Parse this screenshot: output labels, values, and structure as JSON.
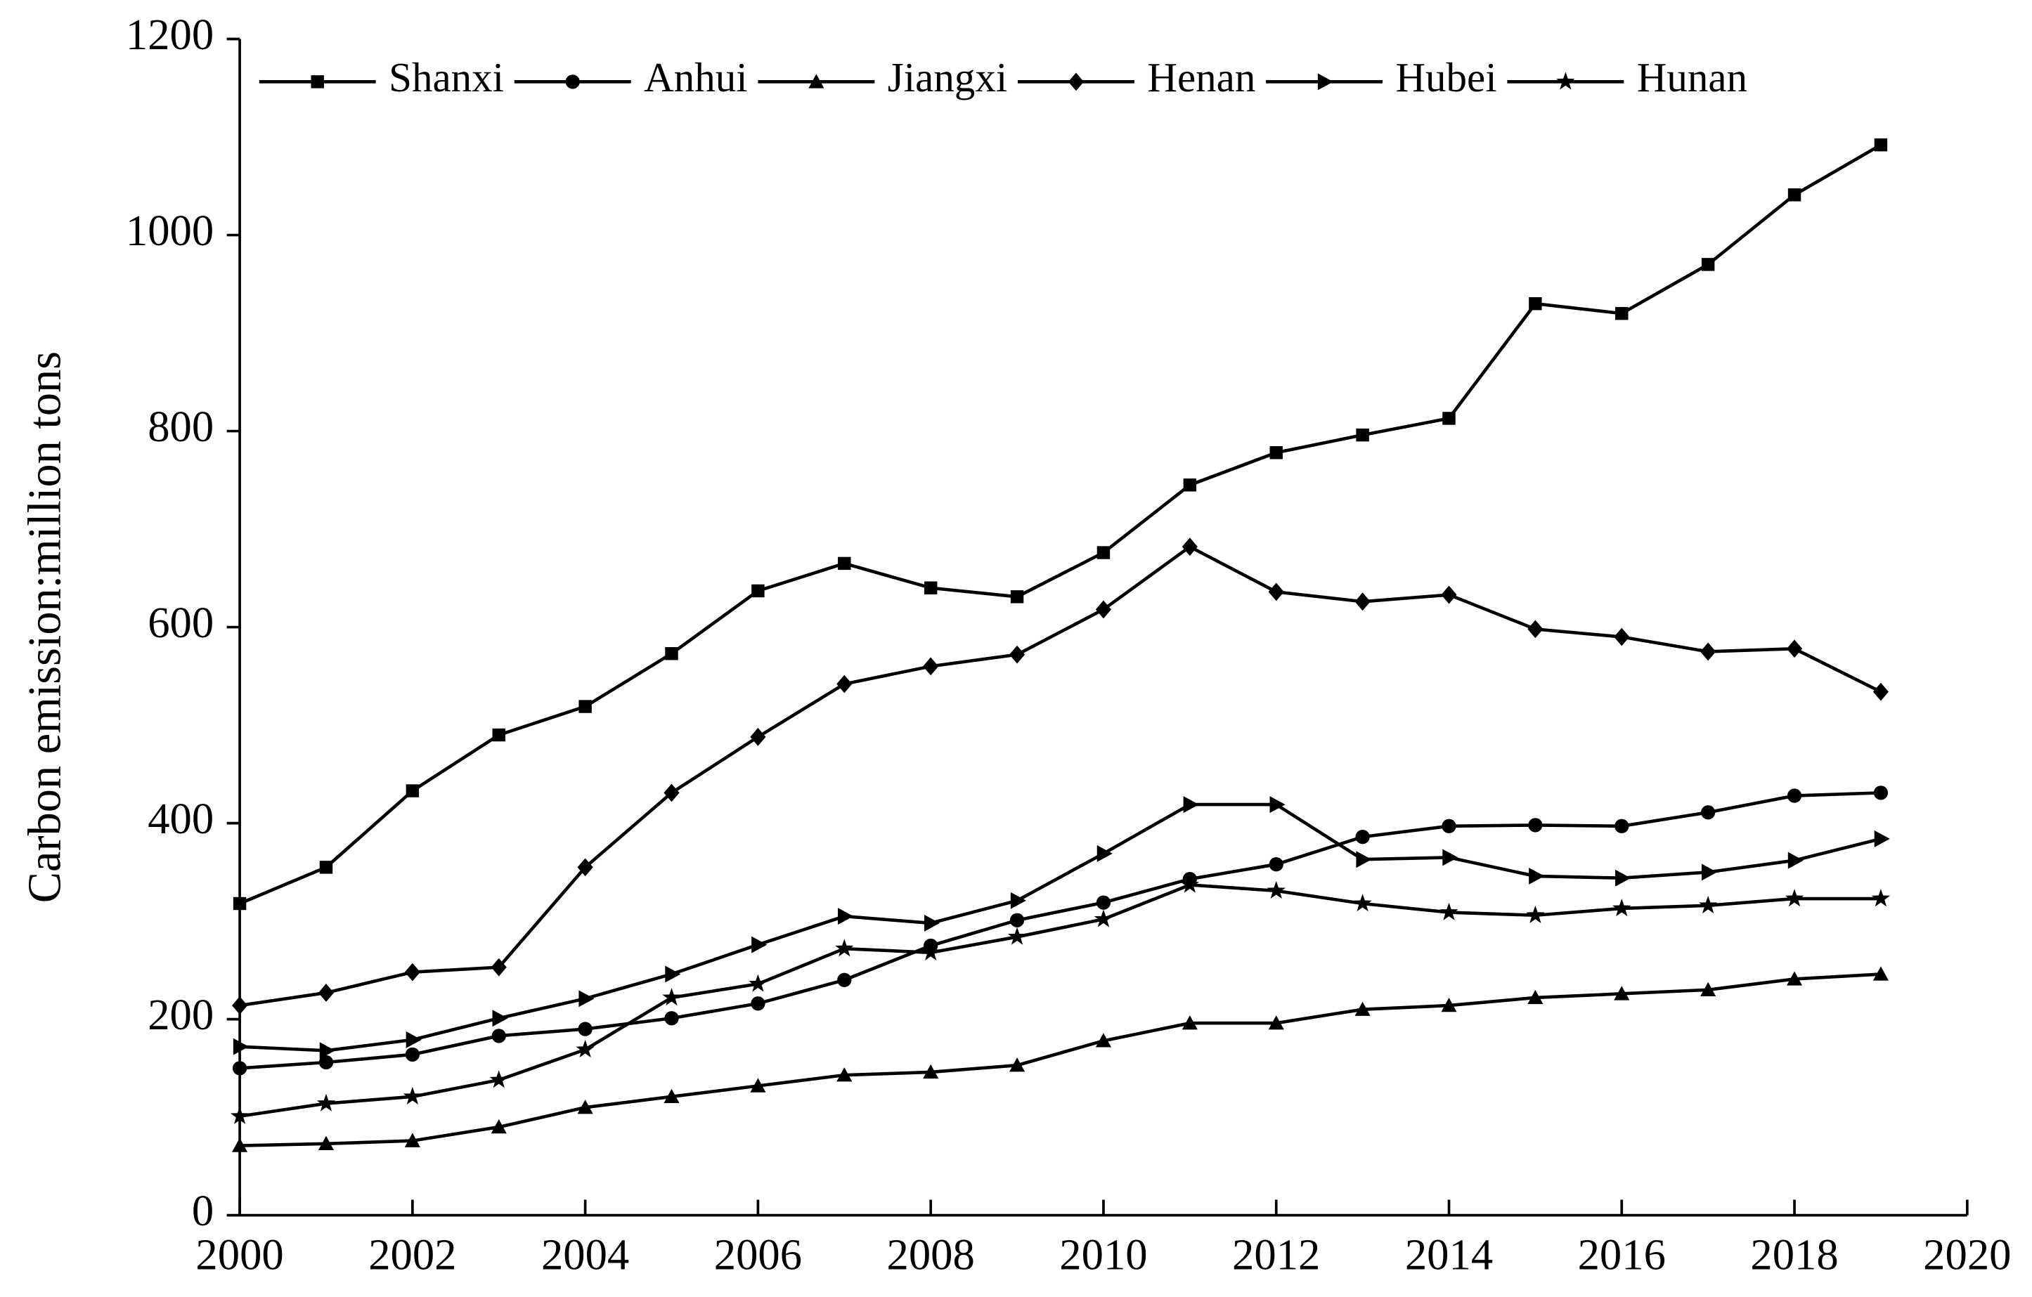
{
  "chart_data": {
    "type": "line",
    "y_label": "Carbon emission:million tons",
    "x": [
      2000,
      2001,
      2002,
      2003,
      2004,
      2005,
      2006,
      2007,
      2008,
      2009,
      2010,
      2011,
      2012,
      2013,
      2014,
      2015,
      2016,
      2017,
      2018,
      2019
    ],
    "xlim": [
      2000,
      2020
    ],
    "xticks": [
      2000,
      2002,
      2004,
      2006,
      2008,
      2010,
      2012,
      2014,
      2016,
      2018,
      2020
    ],
    "ylim": [
      0,
      1200
    ],
    "yticks": [
      0,
      200,
      400,
      600,
      800,
      1000,
      1200
    ],
    "grid": false,
    "legend": "top",
    "series": [
      {
        "name": "Shanxi",
        "color": "#000000",
        "marker": "square",
        "values": [
          318,
          355,
          433,
          490,
          519,
          573,
          637,
          665,
          640,
          631,
          676,
          745,
          778,
          796,
          813,
          930,
          920,
          970,
          1041,
          1092
        ]
      },
      {
        "name": "Anhui",
        "color": "#000000",
        "marker": "circle",
        "values": [
          150,
          156,
          164,
          183,
          190,
          201,
          216,
          240,
          275,
          301,
          319,
          343,
          358,
          386,
          397,
          398,
          397,
          411,
          428,
          431
        ]
      },
      {
        "name": "Jiangxi",
        "color": "#000000",
        "marker": "triangle",
        "values": [
          71,
          73,
          76,
          90,
          110,
          121,
          132,
          143,
          146,
          153,
          178,
          196,
          196,
          210,
          214,
          222,
          226,
          230,
          241,
          246
        ]
      },
      {
        "name": "Henan",
        "color": "#000000",
        "marker": "diamond",
        "values": [
          214,
          227,
          248,
          253,
          355,
          431,
          488,
          542,
          560,
          572,
          618,
          682,
          636,
          626,
          633,
          598,
          590,
          575,
          578,
          534
        ]
      },
      {
        "name": "Hubei",
        "color": "#000000",
        "marker": "right-triangle",
        "values": [
          172,
          168,
          179,
          201,
          221,
          246,
          276,
          305,
          298,
          321,
          369,
          419,
          419,
          363,
          365,
          346,
          344,
          350,
          362,
          384
        ]
      },
      {
        "name": "Hunan",
        "color": "#000000",
        "marker": "star",
        "values": [
          101,
          114,
          121,
          138,
          169,
          222,
          236,
          272,
          268,
          284,
          302,
          337,
          331,
          318,
          309,
          306,
          313,
          316,
          323,
          323
        ]
      }
    ]
  }
}
